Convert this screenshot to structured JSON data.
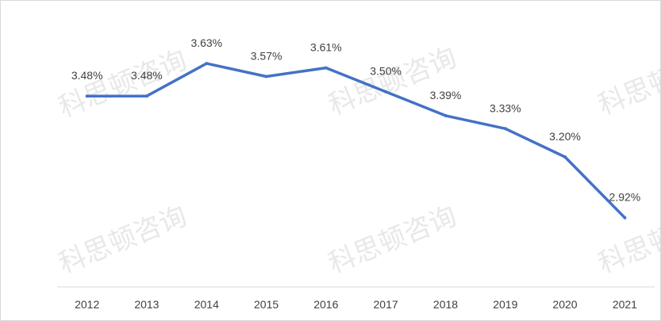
{
  "chart_data": {
    "type": "line",
    "title": "",
    "xlabel": "",
    "ylabel": "",
    "x": [
      "2012",
      "2013",
      "2014",
      "2015",
      "2016",
      "2017",
      "2018",
      "2019",
      "2020",
      "2021"
    ],
    "series": [
      {
        "values": [
          3.48,
          3.48,
          3.63,
          3.57,
          3.61,
          3.5,
          3.39,
          3.33,
          3.2,
          2.92
        ],
        "labels": [
          "3.48%",
          "3.48%",
          "3.63%",
          "3.57%",
          "3.61%",
          "3.50%",
          "3.39%",
          "3.33%",
          "3.20%",
          "2.92%"
        ],
        "color": "#4472C4"
      }
    ],
    "ylim": [
      2.7,
      3.8
    ],
    "grid": false,
    "legend": "none"
  },
  "watermark": "科思顿咨询"
}
